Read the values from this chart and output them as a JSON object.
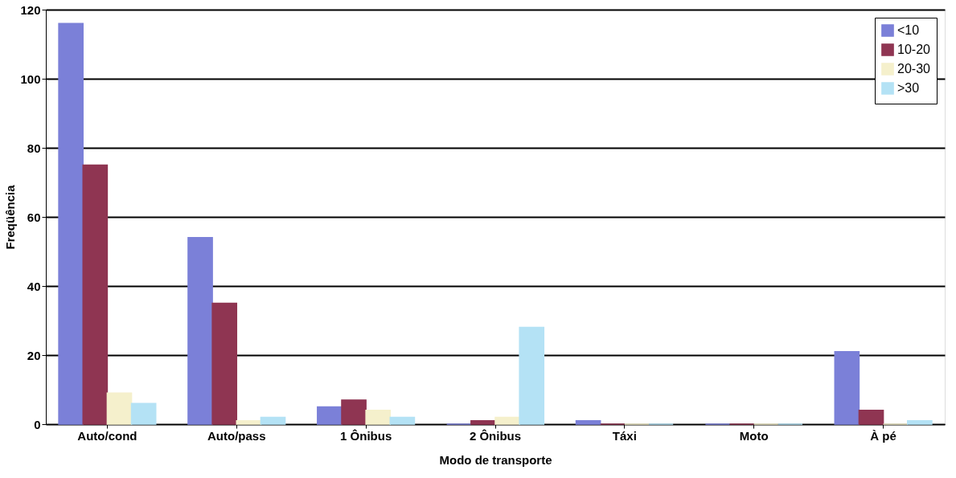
{
  "chart_data": {
    "type": "bar",
    "xlabel": "Modo de transporte",
    "ylabel": "Freqüência",
    "categories": [
      "Auto/cond",
      "Auto/pass",
      "1 Ônibus",
      "2 Ônibus",
      "Táxi",
      "Moto",
      "À pé"
    ],
    "series": [
      {
        "name": "<10",
        "color": "#7b80d8",
        "values": [
          116,
          54,
          5,
          0,
          1,
          0,
          21
        ]
      },
      {
        "name": "10-20",
        "color": "#8f3552",
        "values": [
          75,
          35,
          7,
          1,
          0,
          0,
          4
        ]
      },
      {
        "name": "20-30",
        "color": "#f5f0cc",
        "values": [
          9,
          1,
          4,
          2,
          0,
          0,
          0
        ]
      },
      {
        "name": ">30",
        "color": "#b4e2f5",
        "values": [
          6,
          2,
          2,
          28,
          0,
          0,
          1
        ]
      }
    ],
    "ylim": [
      0,
      120
    ],
    "yticks": [
      0,
      20,
      40,
      60,
      80,
      100,
      120
    ],
    "grid": "y",
    "legend": "top right"
  }
}
